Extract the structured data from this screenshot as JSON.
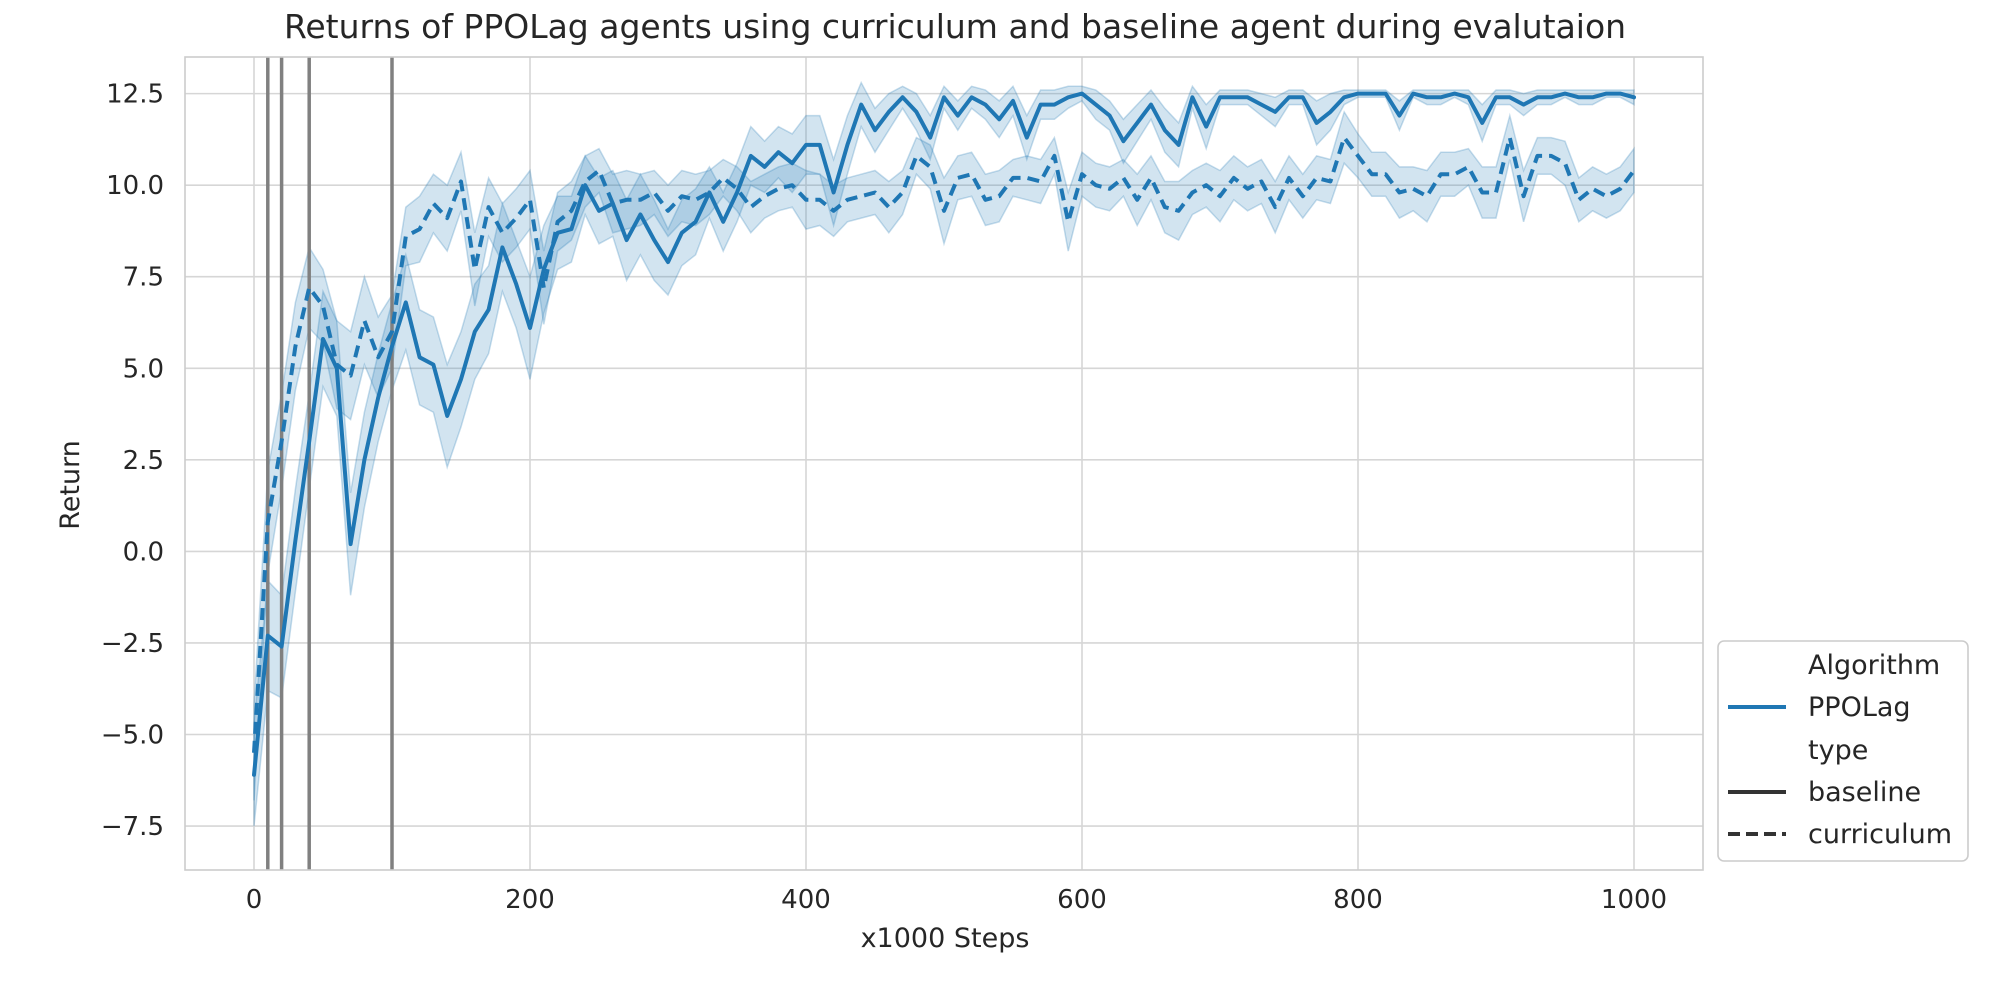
{
  "chart_data": {
    "type": "line",
    "title": "Returns of PPOLag agents using curriculum and baseline agent during evalutaion",
    "xlabel": "x1000 Steps",
    "ylabel": "Return",
    "xlim": [
      -50,
      1050
    ],
    "ylim": [
      -8.7,
      13.5
    ],
    "xticks": [
      0,
      200,
      400,
      600,
      800,
      1000
    ],
    "xtick_labels": [
      "0",
      "200",
      "400",
      "600",
      "800",
      "1000"
    ],
    "yticks": [
      -7.5,
      -5.0,
      -2.5,
      0.0,
      2.5,
      5.0,
      7.5,
      10.0,
      12.5
    ],
    "ytick_labels": [
      "−7.5",
      "−5.0",
      "−2.5",
      "0.0",
      "2.5",
      "5.0",
      "7.5",
      "10.0",
      "12.5"
    ],
    "grid": true,
    "legend_position": "bottom-right, outside plot",
    "vertical_lines": [
      10,
      20,
      40,
      100
    ],
    "colors": {
      "series": "#1f77b4",
      "band": "#1f77b4",
      "vlines": "#808080",
      "grid": "#d6d6d6",
      "frame": "#cccccc",
      "text": "#262626"
    },
    "x": [
      0,
      10,
      20,
      30,
      40,
      50,
      60,
      70,
      80,
      90,
      100,
      110,
      120,
      130,
      140,
      150,
      160,
      170,
      180,
      190,
      200,
      210,
      220,
      230,
      240,
      250,
      260,
      270,
      280,
      290,
      300,
      310,
      320,
      330,
      340,
      350,
      360,
      370,
      380,
      390,
      400,
      410,
      420,
      430,
      440,
      450,
      460,
      470,
      480,
      490,
      500,
      510,
      520,
      530,
      540,
      550,
      560,
      570,
      580,
      590,
      600,
      610,
      620,
      630,
      640,
      650,
      660,
      670,
      680,
      690,
      700,
      710,
      720,
      730,
      740,
      750,
      760,
      770,
      780,
      790,
      800,
      810,
      820,
      830,
      840,
      850,
      860,
      870,
      880,
      890,
      900,
      910,
      920,
      930,
      940,
      950,
      960,
      970,
      980,
      990,
      1000
    ],
    "series": [
      {
        "name": "baseline",
        "line_style": "solid",
        "values": [
          -6.1,
          -2.3,
          -2.6,
          0.3,
          3.0,
          5.8,
          5.0,
          0.2,
          2.5,
          4.2,
          5.6,
          6.8,
          5.3,
          5.1,
          3.7,
          4.7,
          6.0,
          6.6,
          8.3,
          7.3,
          6.1,
          7.7,
          8.7,
          8.8,
          10.0,
          9.3,
          9.5,
          8.5,
          9.2,
          8.5,
          7.9,
          8.7,
          9.0,
          9.8,
          9.0,
          9.8,
          10.8,
          10.5,
          10.9,
          10.6,
          11.1,
          11.1,
          9.8,
          11.1,
          12.2,
          11.5,
          12.0,
          12.4,
          12.0,
          11.3,
          12.4,
          11.9,
          12.4,
          12.2,
          11.8,
          12.3,
          11.3,
          12.2,
          12.2,
          12.4,
          12.5,
          12.2,
          11.9,
          11.2,
          11.7,
          12.2,
          11.5,
          11.1,
          12.4,
          11.6,
          12.4,
          12.4,
          12.4,
          12.2,
          12.0,
          12.4,
          12.4,
          11.7,
          12.0,
          12.4,
          12.5,
          12.5,
          12.5,
          11.9,
          12.5,
          12.4,
          12.4,
          12.5,
          12.4,
          11.7,
          12.4,
          12.4,
          12.2,
          12.4,
          12.4,
          12.5,
          12.4,
          12.4,
          12.5,
          12.5,
          12.4
        ],
        "band_half_width": [
          1.4,
          1.5,
          1.4,
          1.4,
          1.3,
          1.3,
          1.3,
          1.4,
          1.3,
          1.2,
          1.2,
          1.3,
          1.3,
          1.3,
          1.4,
          1.3,
          1.3,
          1.2,
          1.2,
          1.2,
          1.4,
          1.2,
          1.0,
          0.9,
          0.8,
          0.9,
          0.9,
          1.1,
          1.1,
          1.1,
          0.9,
          0.9,
          0.9,
          0.7,
          0.8,
          0.8,
          0.8,
          0.7,
          0.7,
          0.8,
          0.8,
          0.8,
          0.9,
          0.8,
          0.6,
          0.6,
          0.5,
          0.3,
          0.5,
          0.6,
          0.3,
          0.4,
          0.3,
          0.4,
          0.5,
          0.4,
          0.6,
          0.4,
          0.4,
          0.3,
          0.2,
          0.4,
          0.4,
          0.6,
          0.5,
          0.4,
          0.6,
          0.6,
          0.3,
          0.6,
          0.2,
          0.2,
          0.2,
          0.3,
          0.4,
          0.2,
          0.2,
          0.6,
          0.5,
          0.2,
          0.1,
          0.1,
          0.1,
          0.4,
          0.1,
          0.2,
          0.2,
          0.1,
          0.2,
          0.5,
          0.2,
          0.2,
          0.3,
          0.2,
          0.2,
          0.1,
          0.2,
          0.2,
          0.1,
          0.1,
          0.2
        ]
      },
      {
        "name": "curriculum",
        "line_style": "dashed",
        "values": [
          -5.5,
          0.8,
          3.0,
          5.6,
          7.2,
          6.7,
          5.1,
          4.8,
          6.3,
          5.3,
          6.0,
          8.6,
          8.8,
          9.5,
          9.1,
          10.1,
          7.7,
          9.4,
          8.7,
          9.1,
          9.6,
          7.2,
          9.0,
          9.3,
          10.1,
          10.4,
          9.5,
          9.6,
          9.6,
          9.8,
          9.3,
          9.7,
          9.6,
          9.8,
          10.2,
          9.9,
          9.4,
          9.7,
          9.9,
          10.0,
          9.6,
          9.6,
          9.3,
          9.6,
          9.7,
          9.8,
          9.4,
          9.8,
          10.8,
          10.5,
          9.3,
          10.2,
          10.3,
          9.6,
          9.7,
          10.2,
          10.2,
          10.1,
          10.8,
          9.0,
          10.3,
          10.0,
          9.9,
          10.2,
          9.6,
          10.2,
          9.4,
          9.3,
          9.8,
          10.0,
          9.7,
          10.2,
          9.9,
          10.1,
          9.4,
          10.2,
          9.7,
          10.2,
          10.1,
          11.3,
          10.8,
          10.3,
          10.3,
          9.8,
          9.9,
          9.7,
          10.3,
          10.3,
          10.5,
          9.8,
          9.8,
          11.3,
          9.7,
          10.8,
          10.8,
          10.6,
          9.6,
          9.9,
          9.7,
          9.9,
          10.4
        ],
        "band_half_width": [
          1.3,
          1.4,
          1.3,
          1.2,
          1.1,
          1.0,
          1.2,
          1.2,
          1.2,
          1.1,
          1.0,
          0.8,
          0.9,
          0.8,
          0.9,
          0.8,
          1.0,
          0.8,
          0.8,
          0.8,
          0.8,
          1.0,
          0.8,
          0.8,
          0.7,
          0.6,
          0.8,
          0.8,
          0.7,
          0.6,
          0.7,
          0.7,
          0.7,
          0.6,
          0.5,
          0.6,
          0.7,
          0.6,
          0.6,
          0.6,
          0.8,
          0.7,
          0.7,
          0.6,
          0.6,
          0.6,
          0.7,
          0.6,
          0.5,
          0.6,
          0.9,
          0.6,
          0.6,
          0.7,
          0.7,
          0.5,
          0.6,
          0.6,
          0.5,
          0.8,
          0.6,
          0.6,
          0.6,
          0.5,
          0.7,
          0.6,
          0.7,
          0.8,
          0.6,
          0.6,
          0.7,
          0.6,
          0.6,
          0.6,
          0.7,
          0.6,
          0.6,
          0.6,
          0.6,
          0.7,
          0.6,
          0.6,
          0.6,
          0.7,
          0.6,
          0.7,
          0.6,
          0.6,
          0.5,
          0.7,
          0.7,
          0.6,
          0.7,
          0.5,
          0.5,
          0.6,
          0.6,
          0.6,
          0.6,
          0.6,
          0.6
        ]
      }
    ],
    "legend": {
      "entries": [
        {
          "label": "Algorithm",
          "kind": "header"
        },
        {
          "label": "PPOLag",
          "kind": "line",
          "style": "solid",
          "color": "#1f77b4"
        },
        {
          "label": "type",
          "kind": "header"
        },
        {
          "label": "baseline",
          "kind": "line",
          "style": "solid",
          "color": "#333333"
        },
        {
          "label": "curriculum",
          "kind": "line",
          "style": "dashed",
          "color": "#333333"
        }
      ]
    }
  }
}
